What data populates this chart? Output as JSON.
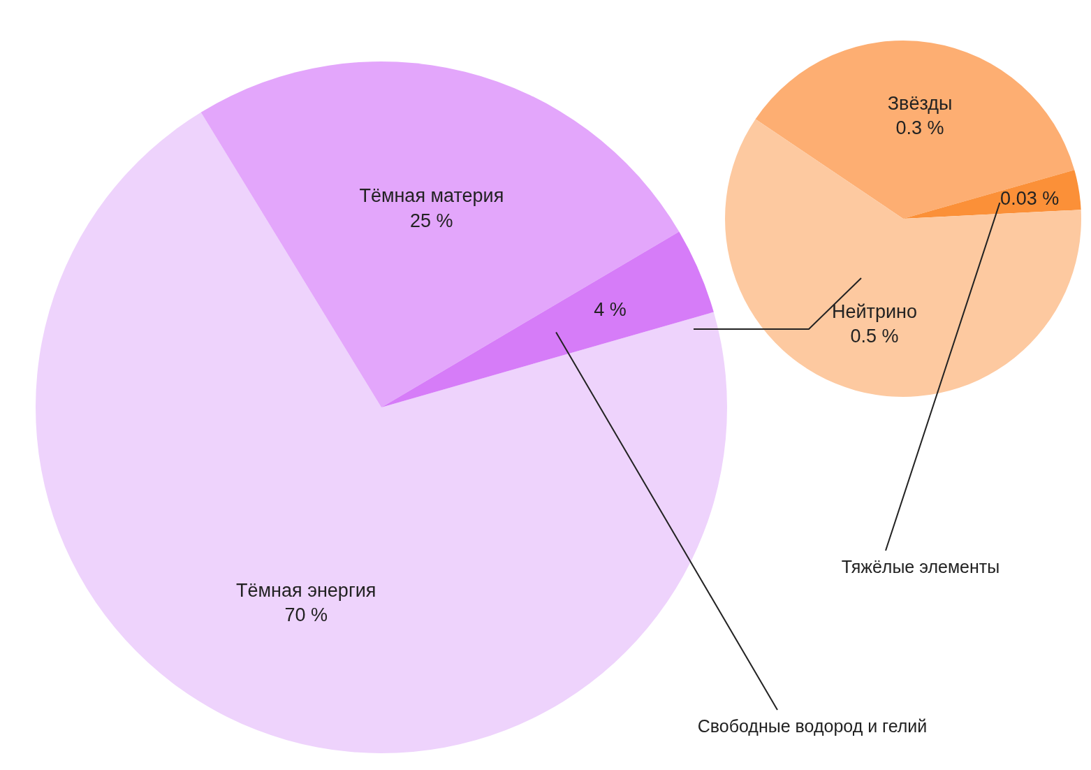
{
  "chart_data": [
    {
      "type": "pie",
      "categories": [
        "Тёмная энергия",
        "Тёмная материя",
        "Свободные водород и гелий"
      ],
      "values": [
        70,
        25,
        4
      ],
      "value_labels": [
        "70 %",
        "25 %",
        "4 %"
      ],
      "colors": [
        "#eed3fc",
        "#e3a6fb",
        "#d67cf8"
      ]
    },
    {
      "type": "pie",
      "categories": [
        "Звёзды",
        "Тяжёлые элементы",
        "Нейтрино"
      ],
      "values": [
        0.3,
        0.03,
        0.5
      ],
      "value_labels": [
        "0.3 %",
        "0.03 %",
        "0.5 %"
      ],
      "colors": [
        "#fdae72",
        "#fb9038",
        "#fdc9a0"
      ]
    }
  ]
}
